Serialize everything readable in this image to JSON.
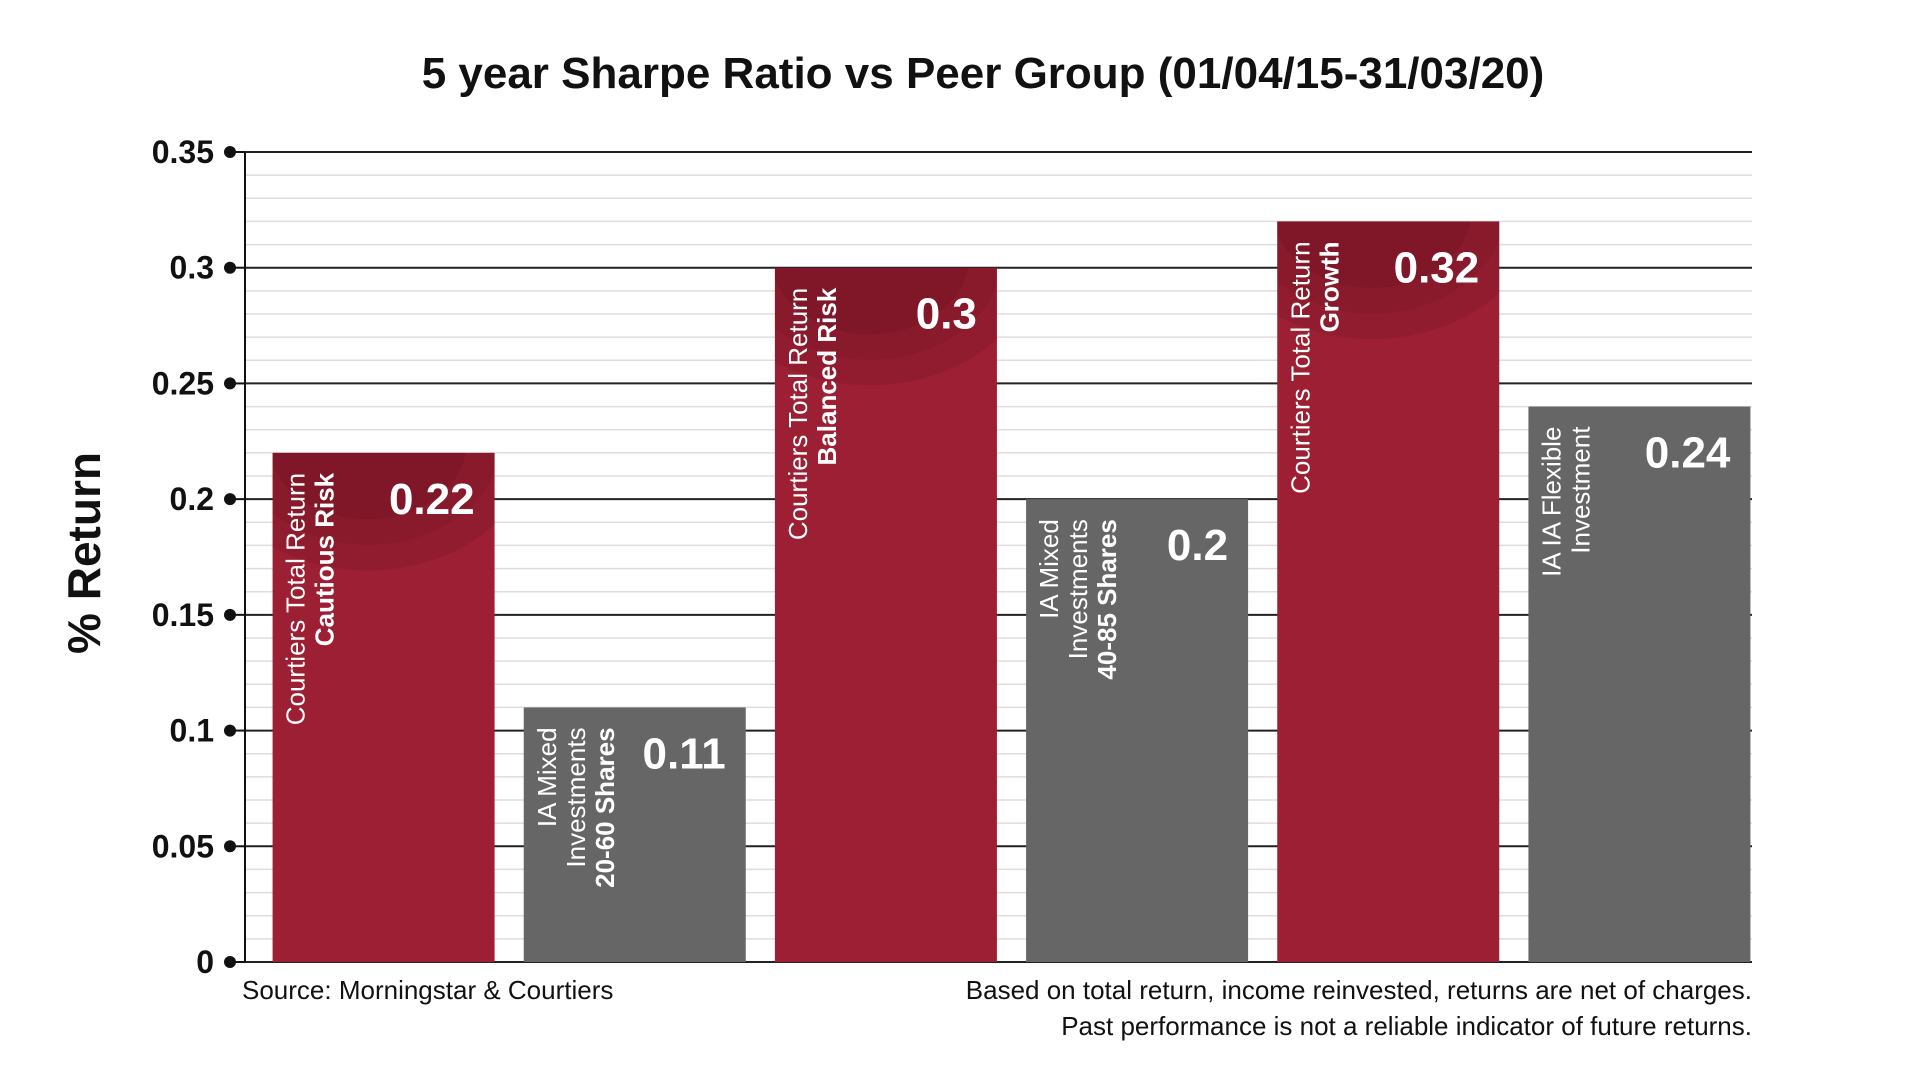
{
  "chart_data": {
    "type": "bar",
    "title": "5 year Sharpe Ratio vs Peer Group (01/04/15-31/03/20)",
    "xlabel": "",
    "ylabel": "% Return",
    "ylim": [
      0,
      0.35
    ],
    "yticks": [
      "0",
      "0.05",
      "0.1",
      "0.15",
      "0.2",
      "0.25",
      "0.3",
      "0.35"
    ],
    "grid": true,
    "colors": {
      "courtiers": "#9c1f33",
      "peer": "#666666"
    },
    "bars": [
      {
        "label_line1": "Courtiers Total Return",
        "label_line2": "Cautious Risk",
        "value": 0.22,
        "value_label": "0.22",
        "group": "courtiers"
      },
      {
        "label_line1": "IA Mixed",
        "label_line2": "Investments",
        "label_line3": "20-60 Shares",
        "value": 0.11,
        "value_label": "0.11",
        "group": "peer"
      },
      {
        "label_line1": "Courtiers Total Return",
        "label_line2": "Balanced Risk",
        "value": 0.3,
        "value_label": "0.3",
        "group": "courtiers"
      },
      {
        "label_line1": "IA Mixed",
        "label_line2": "Investments",
        "label_line3": "40-85 Shares",
        "value": 0.2,
        "value_label": "0.2",
        "group": "peer"
      },
      {
        "label_line1": "Courtiers Total Return",
        "label_line2": "Growth",
        "value": 0.32,
        "value_label": "0.32",
        "group": "courtiers"
      },
      {
        "label_line1": "IA IA Flexible",
        "label_line2": "Investment",
        "value": 0.24,
        "value_label": "0.24",
        "group": "peer"
      }
    ],
    "source_note": "Source: Morningstar & Courtiers",
    "disclaimer_line1": "Based on total return, income reinvested, returns are net of charges.",
    "disclaimer_line2": "Past performance is not a reliable indicator of future returns."
  }
}
